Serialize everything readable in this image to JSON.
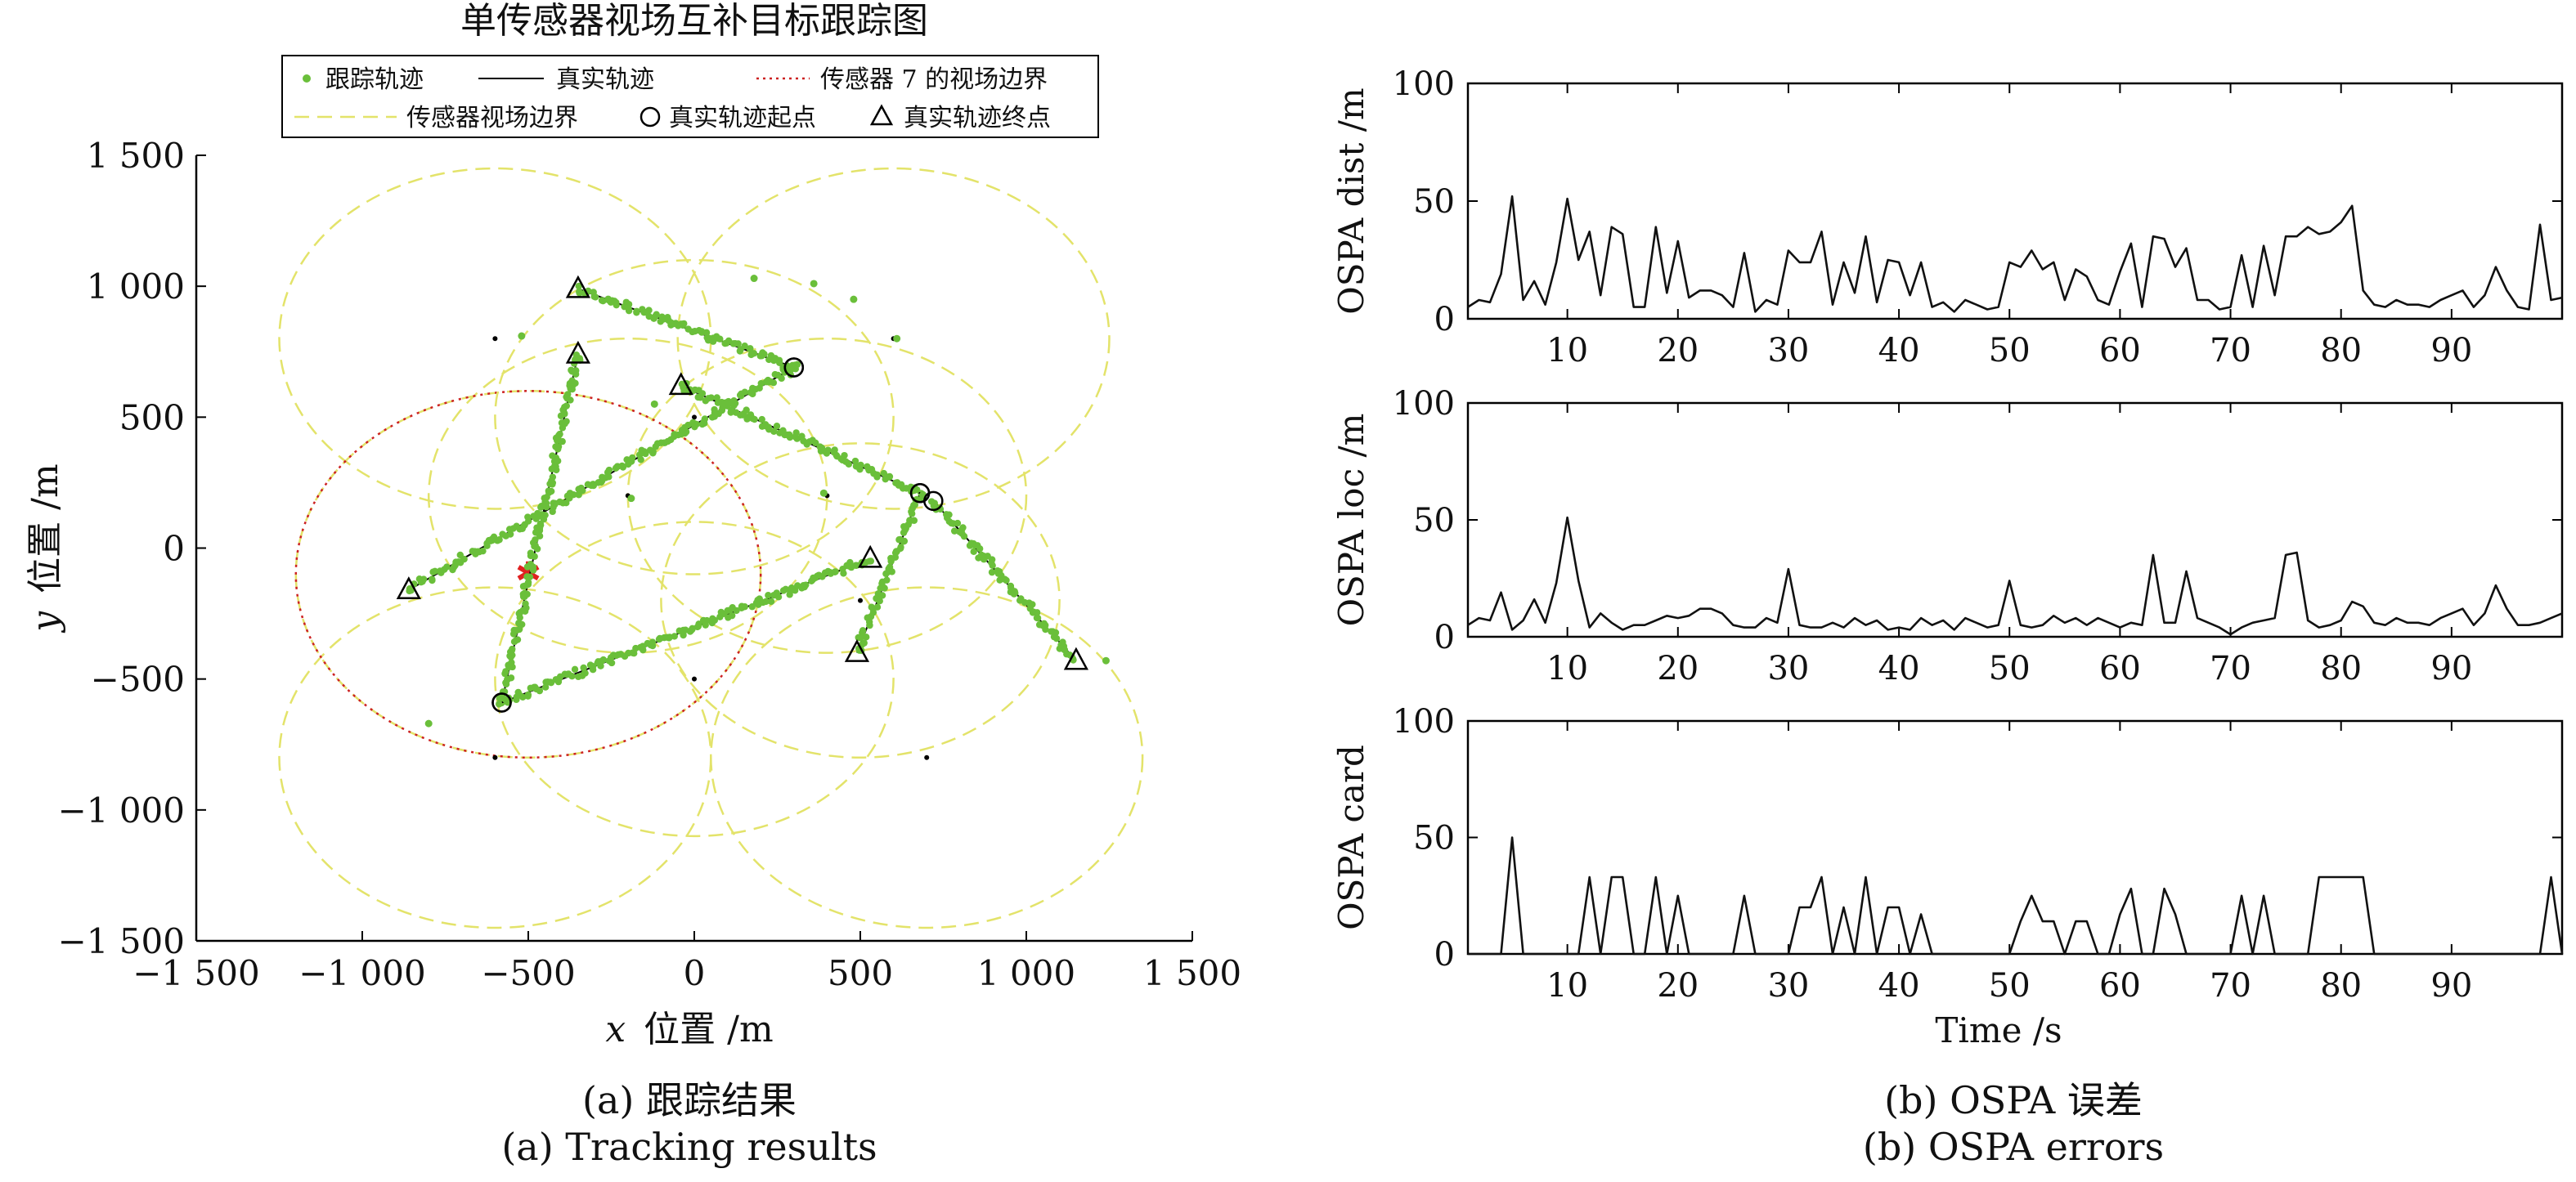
{
  "chart_data": [
    {
      "type": "scatter",
      "title": "单传感器视场互补目标跟踪图",
      "xlabel_var": "x",
      "xlabel": "位置 /m",
      "ylabel_var": "y",
      "ylabel": "位置 /m",
      "xlim": [
        -1500,
        1500
      ],
      "ylim": [
        -1500,
        1500
      ],
      "xticks": [
        -1500,
        -1000,
        -500,
        0,
        500,
        1000,
        1500
      ],
      "xtick_labels": [
        "−1 500",
        "−1 000",
        "−500",
        "0",
        "500",
        "1 000",
        "1 500"
      ],
      "yticks": [
        -1500,
        -1000,
        -500,
        0,
        500,
        1000,
        1500
      ],
      "ytick_labels": [
        "−1 500",
        "−1 000",
        "−500",
        "0",
        "500",
        "1 000",
        "1 500"
      ],
      "legend_position": "top",
      "legend": {
        "tracked": "跟踪轨迹",
        "truth": "真实轨迹",
        "sensor7_fov": "传感器 7 的视场边界",
        "sensor_fov": "传感器视场边界",
        "start": "真实轨迹起点",
        "end": "真实轨迹终点"
      },
      "colors": {
        "tracked": "#6abf3a",
        "truth": "#000000",
        "sensor7_fov": "#cc2222",
        "sensor_fov": "#e3e36a",
        "sensor7_marker": "#e02020"
      },
      "sensors": [
        {
          "x": -600,
          "y": 800,
          "r": 650
        },
        {
          "x": 600,
          "y": 800,
          "r": 650
        },
        {
          "x": -600,
          "y": -800,
          "r": 650
        },
        {
          "x": 700,
          "y": -800,
          "r": 650
        },
        {
          "x": 400,
          "y": 200,
          "r": 600
        },
        {
          "x": -200,
          "y": 200,
          "r": 600
        },
        {
          "x": -500,
          "y": -100,
          "r": 700
        },
        {
          "x": 0,
          "y": 500,
          "r": 600
        },
        {
          "x": 0,
          "y": -500,
          "r": 600
        },
        {
          "x": 500,
          "y": -200,
          "r": 600
        }
      ],
      "sensor7_index": 6,
      "trajectories": [
        {
          "start": [
            -580,
            -590
          ],
          "end": [
            -350,
            740
          ]
        },
        {
          "start": [
            -580,
            -590
          ],
          "end": [
            530,
            -40
          ]
        },
        {
          "start": [
            300,
            690
          ],
          "end": [
            -860,
            -160
          ]
        },
        {
          "start": [
            300,
            690
          ],
          "end": [
            -350,
            990
          ]
        },
        {
          "start": [
            720,
            180
          ],
          "end": [
            1150,
            -430
          ]
        },
        {
          "start": [
            680,
            210
          ],
          "end": [
            490,
            -400
          ]
        },
        {
          "start": [
            680,
            210
          ],
          "end": [
            -40,
            620
          ]
        }
      ],
      "clutter": [
        [
          -520,
          810
        ],
        [
          360,
          1010
        ],
        [
          480,
          950
        ],
        [
          180,
          1030
        ],
        [
          -120,
          550
        ],
        [
          -70,
          860
        ],
        [
          -30,
          600
        ],
        [
          -800,
          -670
        ],
        [
          1240,
          -430
        ],
        [
          390,
          210
        ],
        [
          -190,
          190
        ],
        [
          610,
          800
        ]
      ]
    },
    {
      "type": "line",
      "ylabel": "OSPA dist /m",
      "xlim": [
        1,
        100
      ],
      "ylim": [
        0,
        100
      ],
      "xticks": [
        10,
        20,
        30,
        40,
        50,
        60,
        70,
        80,
        90
      ],
      "yticks": [
        0,
        50,
        100
      ],
      "y": [
        5,
        8,
        7,
        19,
        52,
        8,
        16,
        6,
        24,
        51,
        25,
        37,
        10,
        39,
        36,
        5,
        5,
        39,
        11,
        33,
        9,
        12,
        12,
        10,
        5,
        28,
        3,
        8,
        6,
        29,
        24,
        24,
        37,
        6,
        24,
        11,
        35,
        7,
        25,
        24,
        10,
        24,
        5,
        7,
        3,
        8,
        6,
        4,
        5,
        24,
        22,
        29,
        21,
        24,
        8,
        21,
        18,
        8,
        6,
        20,
        32,
        5,
        35,
        34,
        22,
        30,
        8,
        8,
        4,
        5,
        27,
        5,
        31,
        10,
        35,
        35,
        39,
        36,
        37,
        41,
        48,
        12,
        6,
        5,
        8,
        6,
        6,
        5,
        8,
        10,
        12,
        5,
        10,
        22,
        12,
        5,
        4,
        40,
        8,
        9
      ]
    },
    {
      "type": "line",
      "ylabel": "OSPA loc /m",
      "xlim": [
        1,
        100
      ],
      "ylim": [
        0,
        100
      ],
      "xticks": [
        10,
        20,
        30,
        40,
        50,
        60,
        70,
        80,
        90
      ],
      "yticks": [
        0,
        50,
        100
      ],
      "y": [
        5,
        8,
        7,
        19,
        3,
        7,
        16,
        6,
        23,
        51,
        24,
        4,
        10,
        6,
        3,
        5,
        5,
        7,
        9,
        8,
        9,
        12,
        12,
        10,
        5,
        4,
        4,
        8,
        6,
        29,
        5,
        4,
        4,
        6,
        4,
        8,
        5,
        7,
        3,
        4,
        3,
        8,
        5,
        7,
        3,
        8,
        6,
        4,
        5,
        24,
        5,
        4,
        5,
        9,
        6,
        8,
        5,
        8,
        6,
        4,
        6,
        5,
        35,
        6,
        6,
        28,
        8,
        6,
        4,
        1,
        4,
        6,
        7,
        8,
        35,
        36,
        7,
        4,
        5,
        7,
        15,
        13,
        6,
        5,
        8,
        6,
        6,
        5,
        8,
        10,
        12,
        5,
        10,
        22,
        12,
        5,
        5,
        6,
        8,
        10
      ]
    },
    {
      "type": "line",
      "ylabel": "OSPA card",
      "xlabel": "Time /s",
      "xlim": [
        1,
        100
      ],
      "ylim": [
        0,
        100
      ],
      "xticks": [
        10,
        20,
        30,
        40,
        50,
        60,
        70,
        80,
        90
      ],
      "yticks": [
        0,
        50,
        100
      ],
      "y": [
        0,
        0,
        0,
        0,
        50,
        0,
        0,
        0,
        0,
        0,
        0,
        33,
        0,
        33,
        33,
        0,
        0,
        33,
        0,
        25,
        0,
        0,
        0,
        0,
        0,
        25,
        0,
        0,
        0,
        0,
        20,
        20,
        33,
        0,
        20,
        0,
        33,
        0,
        20,
        20,
        0,
        17,
        0,
        0,
        0,
        0,
        0,
        0,
        0,
        0,
        14,
        25,
        14,
        14,
        0,
        14,
        14,
        0,
        0,
        17,
        28,
        0,
        0,
        28,
        17,
        0,
        0,
        0,
        0,
        0,
        25,
        0,
        25,
        0,
        0,
        0,
        0,
        33,
        33,
        33,
        33,
        33,
        0,
        0,
        0,
        0,
        0,
        0,
        0,
        0,
        0,
        0,
        0,
        0,
        0,
        0,
        0,
        0,
        33,
        0
      ]
    }
  ],
  "captions": {
    "a_cn": "(a) 跟踪结果",
    "a_en": "(a) Tracking results",
    "b_cn": "(b) OSPA 误差",
    "b_en": "(b) OSPA errors"
  }
}
